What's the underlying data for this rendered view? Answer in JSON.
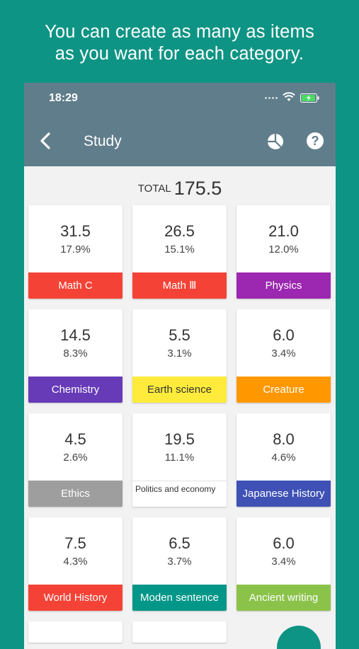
{
  "headline": {
    "line1": "You can create as many as items",
    "line2": "as you want for each category."
  },
  "status_bar": {
    "time": "18:29",
    "icons": [
      "signal-icon",
      "wifi-icon",
      "battery-charging-icon"
    ]
  },
  "app_bar": {
    "title": "Study",
    "icons": [
      "back-icon",
      "pie-chart-icon",
      "help-icon"
    ],
    "help_glyph": "?"
  },
  "summary": {
    "total_label": "TOTAL",
    "total_value": "175.5"
  },
  "categories": [
    {
      "value": "31.5",
      "percent": "17.9%",
      "label": "Math C",
      "color": "#f44336"
    },
    {
      "value": "26.5",
      "percent": "15.1%",
      "label": "Math Ⅲ",
      "color": "#f44336"
    },
    {
      "value": "21.0",
      "percent": "12.0%",
      "label": "Physics",
      "color": "#9c27b0"
    },
    {
      "value": "14.5",
      "percent": "8.3%",
      "label": "Chemistry",
      "color": "#673ab7"
    },
    {
      "value": "5.5",
      "percent": "3.1%",
      "label": "Earth science",
      "color": "#ffeb3b"
    },
    {
      "value": "6.0",
      "percent": "3.4%",
      "label": "Creature",
      "color": "#ff9800"
    },
    {
      "value": "4.5",
      "percent": "2.6%",
      "label": "Ethics",
      "color": "#9e9e9e"
    },
    {
      "value": "19.5",
      "percent": "11.1%",
      "label": "Politics and economy",
      "color": "#ffffff"
    },
    {
      "value": "8.0",
      "percent": "4.6%",
      "label": "Japanese History",
      "color": "#3f51b5"
    },
    {
      "value": "7.5",
      "percent": "4.3%",
      "label": "World History",
      "color": "#f44336"
    },
    {
      "value": "6.5",
      "percent": "3.7%",
      "label": "Moden sentence",
      "color": "#009688"
    },
    {
      "value": "6.0",
      "percent": "3.4%",
      "label": "Ancient writing",
      "color": "#8bc34a"
    }
  ],
  "colors": {
    "background": "#0e9484",
    "app_bar": "#607d8b",
    "content_bg": "#f2f2f2",
    "fab": "#0e9484"
  }
}
